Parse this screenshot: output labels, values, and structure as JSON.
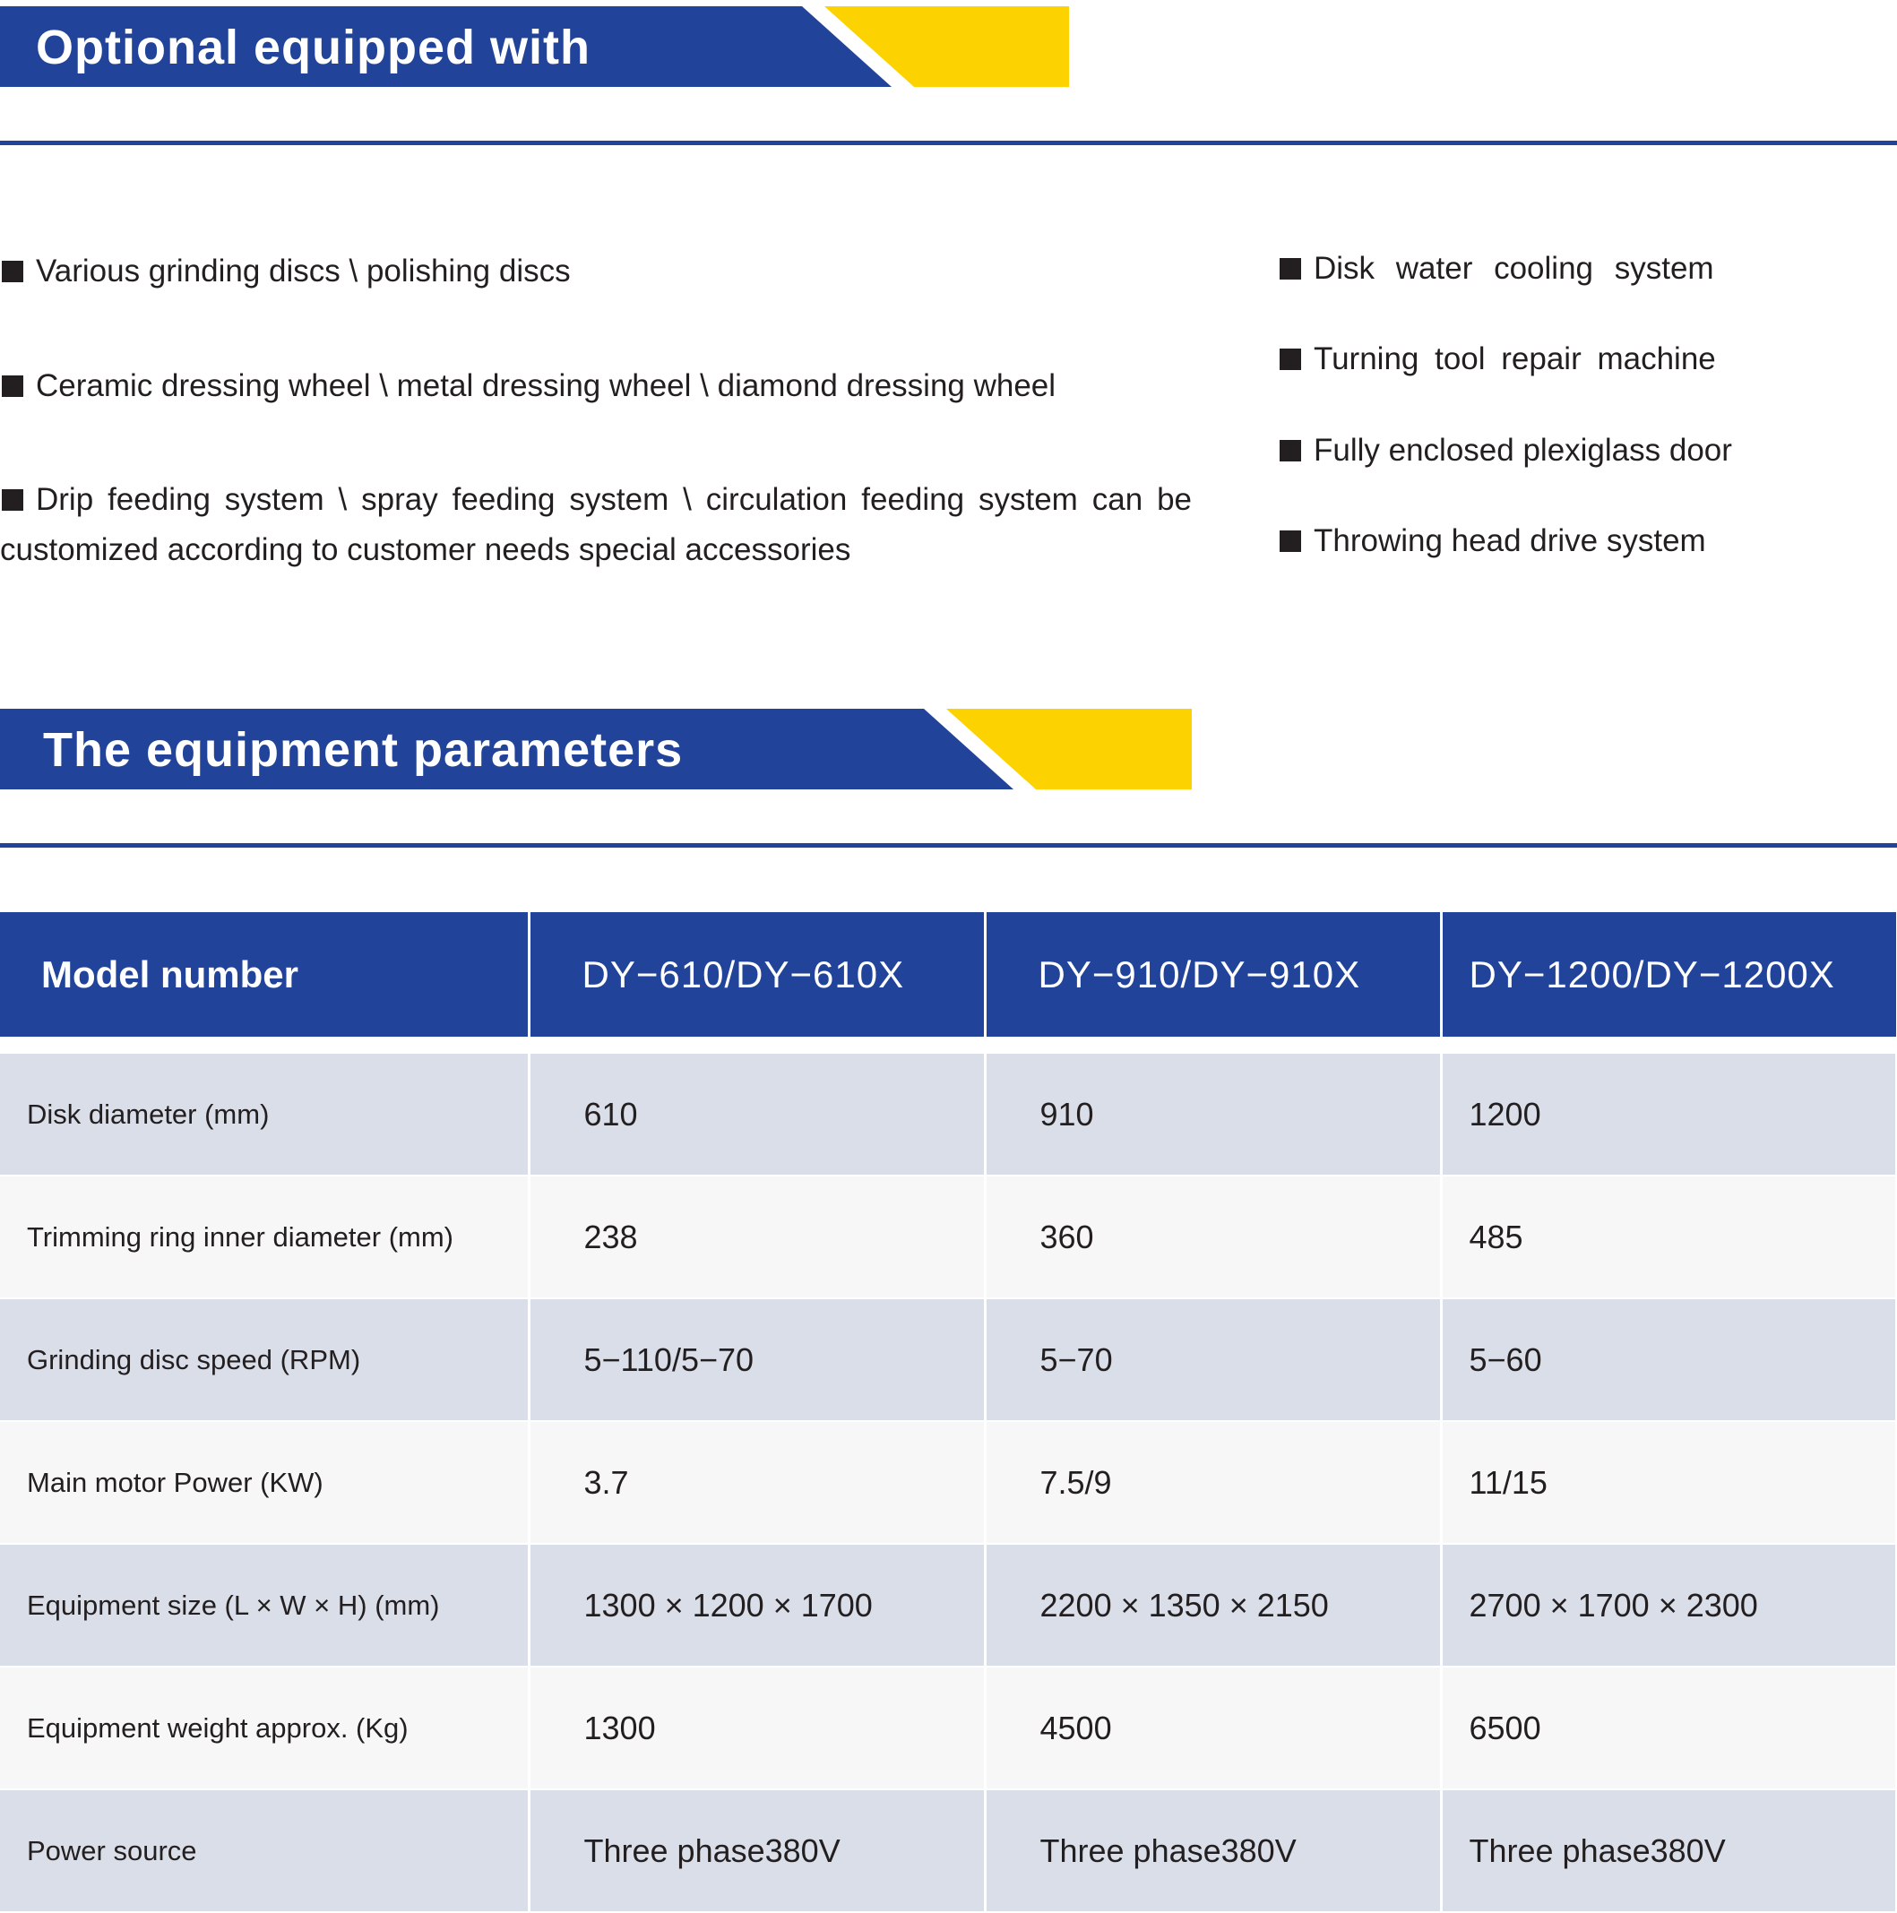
{
  "colors": {
    "brand_blue": "#21449a",
    "accent_yellow": "#fcd200",
    "row_shade": "#d9dee8",
    "row_light": "#f7f7f7"
  },
  "sections": {
    "optional": {
      "title": "Optional equipped with"
    },
    "parameters": {
      "title": "The equipment parameters"
    }
  },
  "optional_items_left": [
    "Various grinding discs \\ polishing discs",
    "Ceramic dressing wheel \\ metal dressing wheel \\ diamond dressing wheel",
    "Drip feeding system \\ spray feeding system \\ circulation feeding system can be customized according to customer needs special accessories"
  ],
  "optional_items_right": [
    "Disk water cooling system",
    "Turning tool repair machine",
    "Fully enclosed plexiglass door",
    "Throwing head drive system"
  ],
  "table": {
    "headers": [
      "Model number",
      "DY−610/DY−610X",
      "DY−910/DY−910X",
      "DY−1200/DY−1200X"
    ],
    "rows": [
      [
        "Disk diameter (mm)",
        "610",
        "910",
        "1200"
      ],
      [
        "Trimming ring inner diameter (mm)",
        "238",
        "360",
        "485"
      ],
      [
        "Grinding disc speed (RPM)",
        "5−110/5−70",
        "5−70",
        "5−60"
      ],
      [
        "Main motor Power (KW)",
        "3.7",
        "7.5/9",
        "11/15"
      ],
      [
        "Equipment size (L × W × H) (mm)",
        "1300 × 1200 × 1700",
        "2200 × 1350 × 2150",
        "2700 × 1700 × 2300"
      ],
      [
        "Equipment weight approx. (Kg)",
        "1300",
        "4500",
        "6500"
      ],
      [
        "Power source",
        "Three phase380V",
        "Three phase380V",
        "Three phase380V"
      ]
    ]
  }
}
